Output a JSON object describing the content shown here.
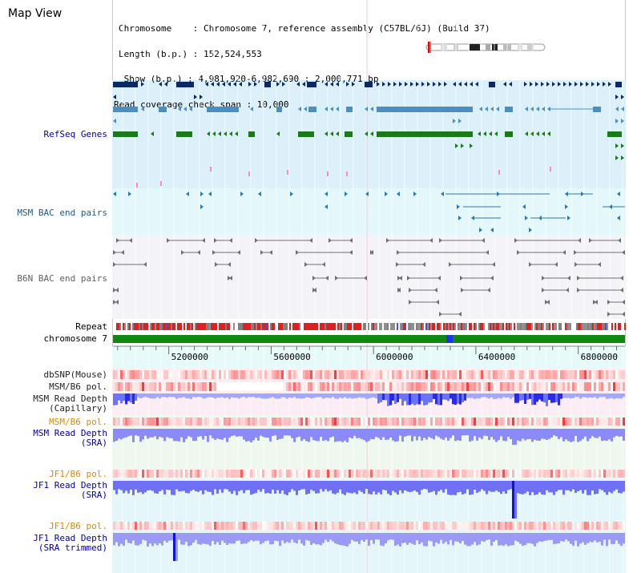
{
  "header": {
    "title": "Map View",
    "chromosome_line": "Chromosome    : Chromosome 7, reference assembly (C57BL/6J) (Build 37)",
    "length_line": "Length (b.p.) : 152,524,553",
    "show_line": " Show (b.p.) : 4,981,920-6,982,690 : 2,000,771 bp",
    "span_line": "Read coverage check span : 10,000"
  },
  "tracks": {
    "refseq": "RefSeq Genes",
    "msm_bac": "MSM BAC end pairs",
    "b6n_bac": "B6N BAC end pairs",
    "repeat": "Repeat",
    "chromosome": "chromosome 7",
    "dbsnp": "dbSNP(Mouse)",
    "msm_b6_pol_1": "MSM/B6 pol.",
    "msm_read_depth_cap_1": "MSM Read Depth",
    "msm_read_depth_cap_2": "(Capillary)",
    "msm_b6_pol_2": "MSM/B6 pol.",
    "msm_read_depth_sra_1": "MSM Read Depth",
    "msm_read_depth_sra_2": "(SRA)",
    "jf1_b6_pol_1": "JF1/B6 pol.",
    "jf1_read_depth_1": "JF1 Read Depth",
    "jf1_read_depth_2": "(SRA)",
    "jf1_b6_pol_2": "JF1/B6 pol.",
    "jf1_trim_1": "JF1 Read Depth",
    "jf1_trim_2": "(SRA trimmed)"
  },
  "axis": {
    "ticks": [
      "5200000",
      "5600000",
      "6000000",
      "6400000",
      "6800000"
    ],
    "range": [
      4981920,
      6982690
    ]
  },
  "colors": {
    "refseq_dark": "#0a2a66",
    "refseq_mid": "#4a8fc4",
    "refseq_green": "#1a7a1a",
    "msm_bac": "#2a7ab0",
    "b6n_bac": "#707070",
    "chrom_bar": "#118811",
    "orange_label": "#d88a00",
    "blue_label": "#0000aa",
    "depth_blue": "#3333ff"
  }
}
